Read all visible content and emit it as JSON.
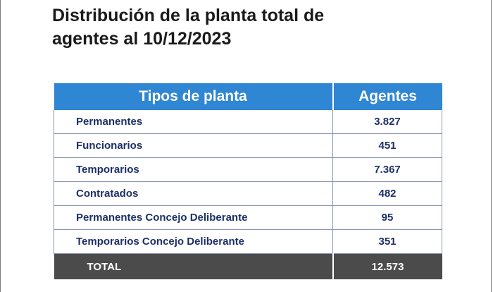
{
  "title": {
    "line1": "Distribución de la planta total de",
    "line2": "agentes al 10/12/2023"
  },
  "table": {
    "headers": [
      "Tipos de planta",
      "Agentes"
    ],
    "rows": [
      {
        "label": "Permanentes",
        "value": "3.827"
      },
      {
        "label": "Funcionarios",
        "value": "451"
      },
      {
        "label": "Temporarios",
        "value": "7.367"
      },
      {
        "label": "Contratados",
        "value": "482"
      },
      {
        "label": "Permanentes Concejo Deliberante",
        "value": "95"
      },
      {
        "label": "Temporarios Concejo Deliberante",
        "value": "351"
      }
    ],
    "total": {
      "label": "TOTAL",
      "value": "12.573"
    }
  },
  "colors": {
    "header_bg": "#2f86d3",
    "total_bg": "#4b4b4b",
    "row_text": "#1d2f66"
  }
}
